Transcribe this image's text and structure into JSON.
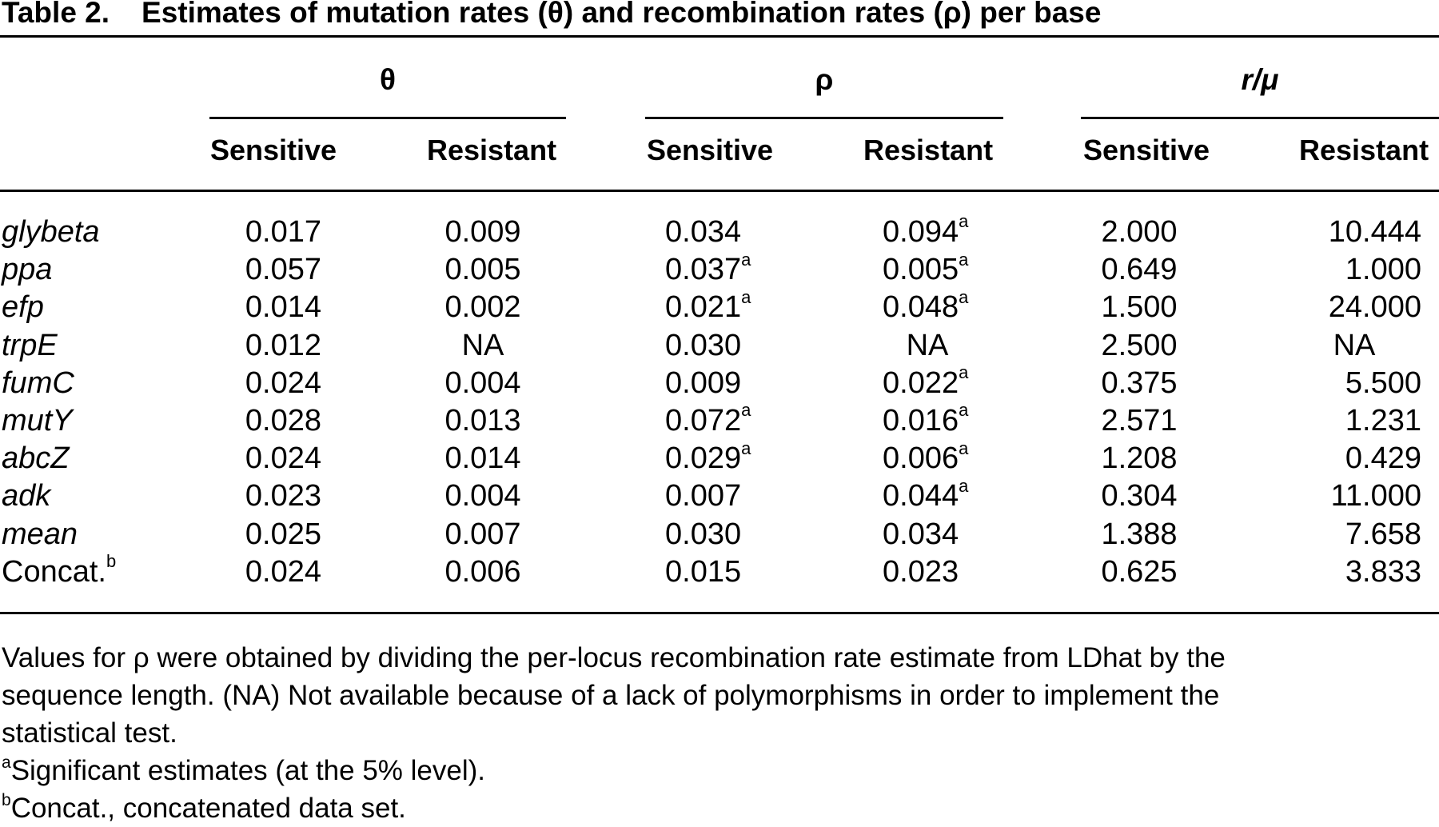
{
  "table": {
    "label": "Table 2.",
    "title": "Estimates of mutation rates (θ) and recombination rates (ρ) per base",
    "groups": [
      {
        "name": "θ",
        "sub": [
          "Sensitive",
          "Resistant"
        ]
      },
      {
        "name": "ρ",
        "sub": [
          "Sensitive",
          "Resistant"
        ]
      },
      {
        "name": "r/μ",
        "sub": [
          "Sensitive",
          "Resistant"
        ]
      }
    ],
    "rows": [
      {
        "locus": "glybeta",
        "theta_s": "0.017",
        "theta_r": "0.009",
        "rho_s": "0.034",
        "rho_s_sup": "",
        "rho_r": "0.094",
        "rho_r_sup": "a",
        "rmu_s": "2.000",
        "rmu_r": "10.444"
      },
      {
        "locus": "ppa",
        "theta_s": "0.057",
        "theta_r": "0.005",
        "rho_s": "0.037",
        "rho_s_sup": "a",
        "rho_r": "0.005",
        "rho_r_sup": "a",
        "rmu_s": "0.649",
        "rmu_r": "1.000"
      },
      {
        "locus": "efp",
        "theta_s": "0.014",
        "theta_r": "0.002",
        "rho_s": "0.021",
        "rho_s_sup": "a",
        "rho_r": "0.048",
        "rho_r_sup": "a",
        "rmu_s": "1.500",
        "rmu_r": "24.000"
      },
      {
        "locus": "trpE",
        "theta_s": "0.012",
        "theta_r": "NA",
        "rho_s": "0.030",
        "rho_s_sup": "",
        "rho_r": "NA",
        "rho_r_sup": "",
        "rmu_s": "2.500",
        "rmu_r": "NA"
      },
      {
        "locus": "fumC",
        "theta_s": "0.024",
        "theta_r": "0.004",
        "rho_s": "0.009",
        "rho_s_sup": "",
        "rho_r": "0.022",
        "rho_r_sup": "a",
        "rmu_s": "0.375",
        "rmu_r": "5.500"
      },
      {
        "locus": "mutY",
        "theta_s": "0.028",
        "theta_r": "0.013",
        "rho_s": "0.072",
        "rho_s_sup": "a",
        "rho_r": "0.016",
        "rho_r_sup": "a",
        "rmu_s": "2.571",
        "rmu_r": "1.231"
      },
      {
        "locus": "abcZ",
        "theta_s": "0.024",
        "theta_r": "0.014",
        "rho_s": "0.029",
        "rho_s_sup": "a",
        "rho_r": "0.006",
        "rho_r_sup": "a",
        "rmu_s": "1.208",
        "rmu_r": "0.429"
      },
      {
        "locus": "adk",
        "theta_s": "0.023",
        "theta_r": "0.004",
        "rho_s": "0.007",
        "rho_s_sup": "",
        "rho_r": "0.044",
        "rho_r_sup": "a",
        "rmu_s": "0.304",
        "rmu_r": "11.000"
      },
      {
        "locus": "mean",
        "theta_s": "0.025",
        "theta_r": "0.007",
        "rho_s": "0.030",
        "rho_s_sup": "",
        "rho_r": "0.034",
        "rho_r_sup": "",
        "rmu_s": "1.388",
        "rmu_r": "7.658"
      },
      {
        "locus": "Concat.",
        "locus_sup": "b",
        "locus_roman": true,
        "theta_s": "0.024",
        "theta_r": "0.006",
        "rho_s": "0.015",
        "rho_s_sup": "",
        "rho_r": "0.023",
        "rho_r_sup": "",
        "rmu_s": "0.625",
        "rmu_r": "3.833"
      }
    ],
    "notes": {
      "line1": "Values for ρ were obtained by dividing the per-locus recombination rate estimate from LDhat by the",
      "line2": "sequence length. (NA) Not available because of a lack of polymorphisms in order to implement the",
      "line3": "statistical test.",
      "fn_a_mark": "a",
      "fn_a_text": "Significant estimates (at the 5% level).",
      "fn_b_mark": "b",
      "fn_b_text": "Concat., concatenated data set."
    }
  }
}
